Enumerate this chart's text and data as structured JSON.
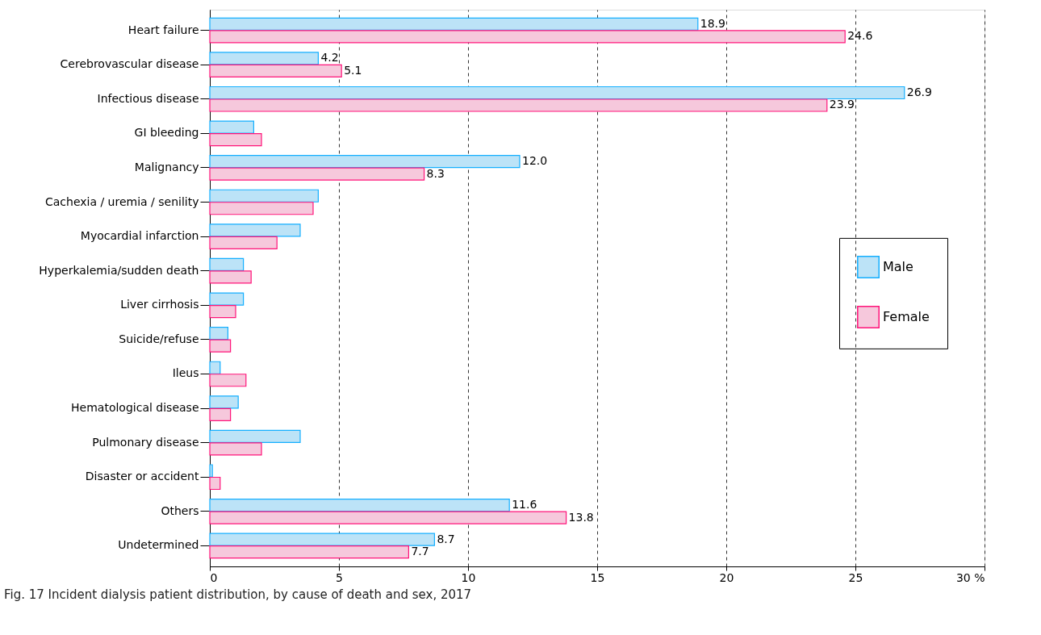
{
  "chart_data": {
    "type": "bar",
    "orientation": "horizontal",
    "categories": [
      "Heart failure",
      "Cerebrovascular disease",
      "Infectious disease",
      "GI bleeding",
      "Malignancy",
      "Cachexia / uremia / senility",
      "Myocardial infarction",
      "Hyperkalemia/sudden death",
      "Liver cirrhosis",
      "Suicide/refuse",
      "Ileus",
      "Hematological disease",
      "Pulmonary disease",
      "Disaster or accident",
      "Others",
      "Undetermined"
    ],
    "series": [
      {
        "name": "Male",
        "color": "#bce3f7",
        "values": [
          18.9,
          4.2,
          26.9,
          1.7,
          12.0,
          4.2,
          3.5,
          1.3,
          1.3,
          0.7,
          0.4,
          1.1,
          3.5,
          0.1,
          11.6,
          8.7
        ],
        "value_labels": [
          "18.9",
          "4.2",
          "26.9",
          null,
          "12.0",
          null,
          null,
          null,
          null,
          null,
          null,
          null,
          null,
          null,
          "11.6",
          "8.7"
        ]
      },
      {
        "name": "Female",
        "color": "#f6c8dc",
        "values": [
          24.6,
          5.1,
          23.9,
          2.0,
          8.3,
          4.0,
          2.6,
          1.6,
          1.0,
          0.8,
          1.4,
          0.8,
          2.0,
          0.4,
          13.8,
          7.7
        ],
        "value_labels": [
          "24.6",
          "5.1",
          "23.9",
          null,
          "8.3",
          null,
          null,
          null,
          null,
          null,
          null,
          null,
          null,
          null,
          "13.8",
          "7.7"
        ]
      }
    ],
    "xlim": [
      0,
      30
    ],
    "xticks": [
      0,
      5,
      10,
      15,
      20,
      25,
      {
        "value": 30,
        "label": "30 %"
      }
    ],
    "grid": "x",
    "legend": "right",
    "annotations": [
      "Fig. 17 Incident dialysis patient distribution, by cause of death and sex, 2017"
    ]
  }
}
